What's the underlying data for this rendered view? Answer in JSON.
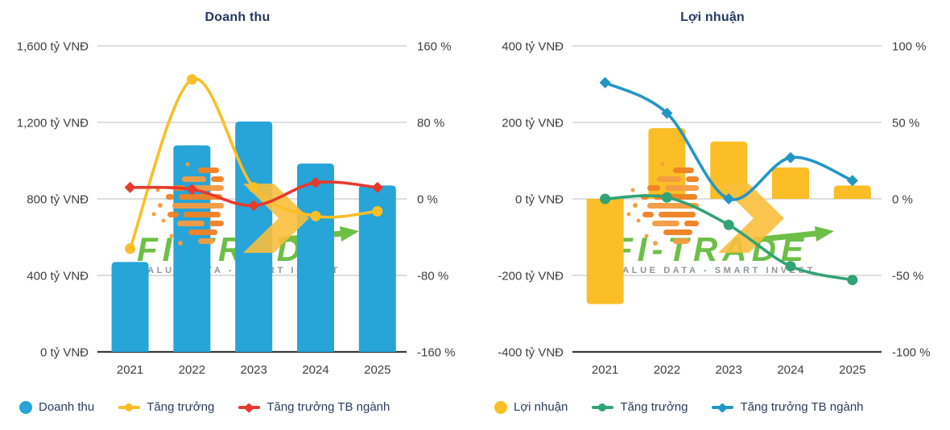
{
  "colors": {
    "background": "#FFFFFF",
    "title_text": "#243A5E",
    "axis_text": "#3E3E3E",
    "legend_text": "#2A3E5E",
    "gridline": "#C9C9C9",
    "axis_line": "#3A3A3A"
  },
  "watermark": {
    "brand": "FI-TRADE",
    "tagline": "VALUE DATA - SMART INVEST",
    "brand_color": "#6CBF47",
    "tagline_color": "#8D9499",
    "icon_orange": "#F08224",
    "icon_orange_light": "#F49C42",
    "icon_arrow_yellow": "#FBBE3B"
  },
  "chart_data": [
    {
      "type": "bar",
      "subtype": "bar-line-combo",
      "title": "Doanh thu",
      "categories": [
        "2021",
        "2022",
        "2023",
        "2024",
        "2025"
      ],
      "bar_series": {
        "name": "Doanh thu",
        "axis": "left",
        "unit": "tỷ VNĐ",
        "color": "#27A4D8",
        "values": [
          470,
          1080,
          1205,
          985,
          870
        ]
      },
      "line_series": [
        {
          "name": "Tăng trưởng",
          "axis": "right",
          "unit": "%",
          "color": "#FBBE26",
          "marker": "circle",
          "values": [
            -52,
            125,
            12,
            -18,
            -13
          ]
        },
        {
          "name": "Tăng trưởng TB ngành",
          "axis": "right",
          "unit": "%",
          "color": "#E8392D",
          "marker": "diamond",
          "values": [
            12,
            10,
            -7,
            17,
            12
          ]
        }
      ],
      "left_axis": {
        "min": 0,
        "max": 1600,
        "tick_step": 400,
        "unit": "tỷ VNĐ",
        "labels": [
          "1,600 tỷ VNĐ",
          "1,200 tỷ VNĐ",
          "800 tỷ VNĐ",
          "400 tỷ VNĐ",
          "0 tỷ VNĐ"
        ]
      },
      "right_axis": {
        "min": -160,
        "max": 160,
        "tick_step": 80,
        "unit": "%",
        "labels": [
          "160 %",
          "80 %",
          "0 %",
          "-80 %",
          "-160 %"
        ]
      },
      "grid": true,
      "legend_position": "bottom"
    },
    {
      "type": "bar",
      "subtype": "bar-line-combo",
      "title": "Lợi nhuận",
      "categories": [
        "2021",
        "2022",
        "2023",
        "2024",
        "2025"
      ],
      "bar_series": {
        "name": "Lợi nhuận",
        "axis": "left",
        "unit": "tỷ VNĐ",
        "color": "#FBBE26",
        "values": [
          -275,
          185,
          150,
          82,
          35
        ]
      },
      "line_series": [
        {
          "name": "Tăng trưởng",
          "axis": "right",
          "unit": "%",
          "color": "#31A376",
          "marker": "circle",
          "values": [
            0,
            1,
            -17,
            -44,
            -53
          ]
        },
        {
          "name": "Tăng trưởng TB ngành",
          "axis": "right",
          "unit": "%",
          "color": "#2396C6",
          "marker": "diamond",
          "values": [
            76,
            56,
            0,
            27,
            12
          ]
        }
      ],
      "left_axis": {
        "min": -400,
        "max": 400,
        "tick_step": 200,
        "unit": "tỷ VNĐ",
        "labels": [
          "400 tỷ VNĐ",
          "200 tỷ VNĐ",
          "0 tỷ VNĐ",
          "-200 tỷ VNĐ",
          "-400 tỷ VNĐ"
        ]
      },
      "right_axis": {
        "min": -100,
        "max": 100,
        "tick_step": 50,
        "unit": "%",
        "labels": [
          "100 %",
          "50 %",
          "0 %",
          "-50 %",
          "-100 %"
        ]
      },
      "grid": true,
      "legend_position": "bottom"
    }
  ]
}
